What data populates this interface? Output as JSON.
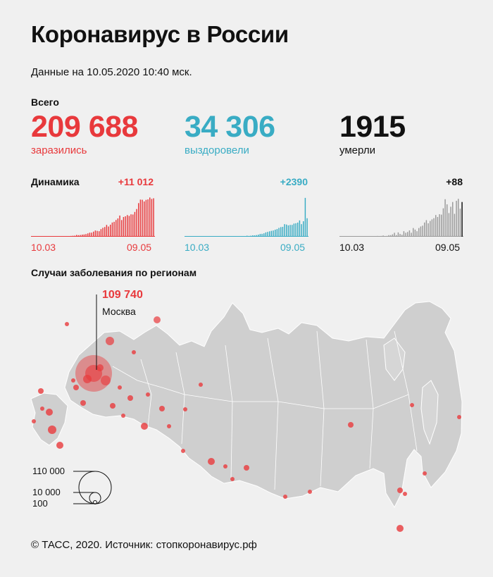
{
  "title": "Коронавирус в России",
  "subtitle": "Данные на 10.05.2020 10:40 мск.",
  "totals_label": "Всего",
  "totals": [
    {
      "value": "209 688",
      "label": "заразились",
      "color": "#e8393c"
    },
    {
      "value": "34 306",
      "label": "выздоровели",
      "color": "#39acc4"
    },
    {
      "value": "1915",
      "label": "умерли",
      "color": "#111111"
    }
  ],
  "dynamics_label": "Динамика",
  "regions_title": "Случаи заболевания по регионам",
  "moscow": {
    "value": "109 740",
    "name": "Москва"
  },
  "legend": [
    "110 000",
    "10 000",
    "100"
  ],
  "footer": "© ТАСС, 2020. Источник: стопкоронавирус.рф",
  "chart_data": [
    {
      "type": "bar",
      "series_color": "#e8393c",
      "delta_label": "+11 012",
      "x_start_label": "10.03",
      "x_end_label": "09.05",
      "values": [
        3,
        3,
        7,
        6,
        7,
        14,
        3,
        4,
        30,
        21,
        16,
        52,
        54,
        57,
        95,
        57,
        124,
        136,
        154,
        163,
        182,
        228,
        270,
        302,
        501,
        440,
        500,
        601,
        652,
        771,
        954,
        1154,
        1175,
        1459,
        1786,
        1667,
        1582,
        2186,
        2558,
        2774,
        3388,
        2923,
        3448,
        4070,
        4268,
        4785,
        5236,
        6060,
        4774,
        5642,
        5849,
        6198,
        5966,
        6411,
        6361,
        7099,
        7933,
        9623,
        10633,
        10581,
        10102,
        10559,
        10699,
        11231,
        10817,
        11012
      ],
      "ylim": [
        0,
        11300
      ]
    },
    {
      "type": "bar",
      "series_color": "#39acc4",
      "delta_label": "+2390",
      "x_start_label": "10.03",
      "x_end_label": "09.05",
      "values": [
        0,
        0,
        0,
        0,
        0,
        0,
        0,
        0,
        1,
        1,
        1,
        1,
        1,
        2,
        3,
        5,
        1,
        3,
        5,
        8,
        3,
        6,
        9,
        8,
        12,
        14,
        16,
        24,
        34,
        20,
        52,
        54,
        89,
        131,
        99,
        131,
        175,
        177,
        212,
        263,
        359,
        374,
        437,
        560,
        626,
        697,
        760,
        807,
        911,
        992,
        1142,
        1241,
        1274,
        1626,
        1571,
        1469,
        1526,
        1530,
        1700,
        1740,
        1825,
        2109,
        1626,
        2000,
        5020,
        2390
      ],
      "ylim": [
        0,
        5100
      ]
    },
    {
      "type": "bar",
      "series_color": "#9a9a9a",
      "highlight_color": "#111111",
      "delta_label": "+88",
      "x_start_label": "10.03",
      "x_end_label": "09.05",
      "values": [
        0,
        0,
        0,
        0,
        0,
        0,
        0,
        0,
        0,
        0,
        0,
        0,
        0,
        1,
        0,
        0,
        1,
        1,
        1,
        1,
        2,
        0,
        2,
        3,
        1,
        2,
        4,
        4,
        6,
        10,
        4,
        11,
        7,
        5,
        14,
        10,
        12,
        16,
        10,
        22,
        18,
        14,
        22,
        26,
        28,
        36,
        42,
        34,
        40,
        44,
        47,
        55,
        50,
        57,
        56,
        72,
        95,
        82,
        60,
        76,
        88,
        58,
        91,
        96,
        71,
        88
      ],
      "ylim": [
        0,
        100
      ]
    }
  ]
}
